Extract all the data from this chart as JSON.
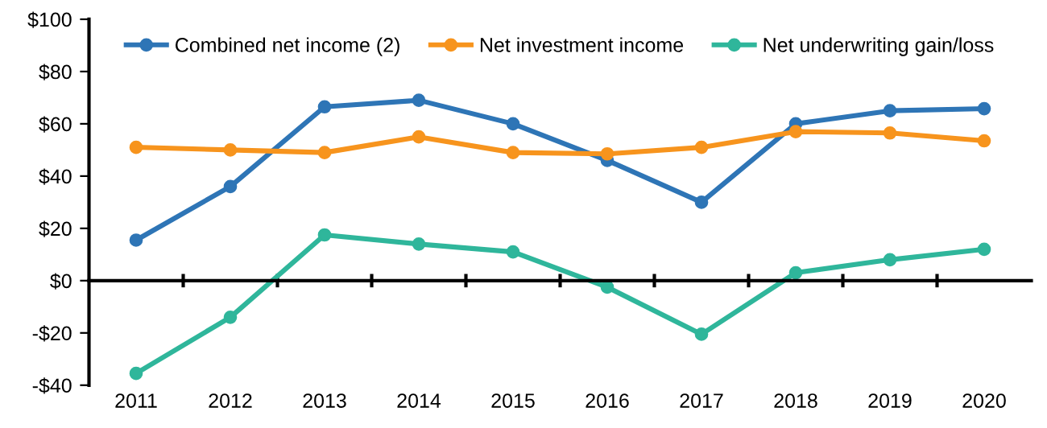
{
  "chart_data": {
    "type": "line",
    "categories": [
      "2011",
      "2012",
      "2013",
      "2014",
      "2015",
      "2016",
      "2017",
      "2018",
      "2019",
      "2020"
    ],
    "series": [
      {
        "name": "Combined net income (2)",
        "color": "#2e75b6",
        "values": [
          15.5,
          36,
          66.5,
          69,
          60,
          46,
          30,
          60,
          65,
          65.8
        ]
      },
      {
        "name": "Net investment income",
        "color": "#f7941d",
        "values": [
          51,
          50,
          49,
          55,
          49,
          48.5,
          51,
          57,
          56.5,
          53.5
        ]
      },
      {
        "name": "Net underwriting gain/loss",
        "color": "#2fb69b",
        "values": [
          -35.5,
          -14,
          17.5,
          14,
          11,
          -2.5,
          -20.5,
          3,
          8,
          12
        ]
      }
    ],
    "ylim": [
      -40,
      100
    ],
    "yticks": [
      {
        "value": -40,
        "label": "-$40"
      },
      {
        "value": -20,
        "label": "-$20"
      },
      {
        "value": 0,
        "label": "$0"
      },
      {
        "value": 20,
        "label": "$20"
      },
      {
        "value": 40,
        "label": "$40"
      },
      {
        "value": 60,
        "label": "$60"
      },
      {
        "value": 80,
        "label": "$80"
      },
      {
        "value": 100,
        "label": "$100"
      }
    ],
    "legend": "top",
    "marker": "circle",
    "line_style": "solid"
  }
}
